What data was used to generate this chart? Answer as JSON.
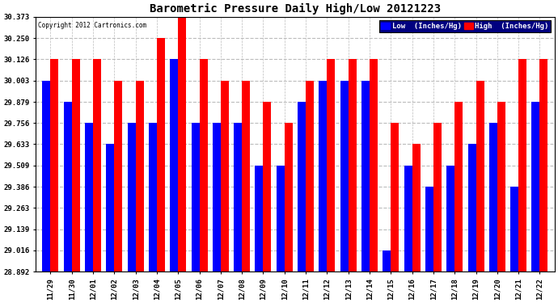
{
  "title": "Barometric Pressure Daily High/Low 20121223",
  "copyright": "Copyright 2012 Cartronics.com",
  "categories": [
    "11/29",
    "11/30",
    "12/01",
    "12/02",
    "12/03",
    "12/04",
    "12/05",
    "12/06",
    "12/07",
    "12/08",
    "12/09",
    "12/10",
    "12/11",
    "12/12",
    "12/13",
    "12/14",
    "12/15",
    "12/16",
    "12/17",
    "12/18",
    "12/19",
    "12/20",
    "12/21",
    "12/22"
  ],
  "low_values": [
    30.003,
    29.879,
    29.756,
    29.633,
    29.756,
    29.756,
    30.126,
    29.756,
    29.756,
    29.756,
    29.509,
    29.509,
    29.879,
    30.003,
    30.003,
    30.003,
    29.016,
    29.509,
    29.386,
    29.509,
    29.633,
    29.756,
    29.386,
    29.879
  ],
  "high_values": [
    30.126,
    30.126,
    30.126,
    30.003,
    30.003,
    30.25,
    30.373,
    30.126,
    30.003,
    30.003,
    29.879,
    29.756,
    30.003,
    30.126,
    30.126,
    30.126,
    29.756,
    29.633,
    29.756,
    29.879,
    30.003,
    29.879,
    30.126,
    30.126
  ],
  "low_color": "#0000ff",
  "high_color": "#ff0000",
  "ymin": 28.892,
  "ymax": 30.373,
  "yticks": [
    28.892,
    29.016,
    29.139,
    29.263,
    29.386,
    29.509,
    29.633,
    29.756,
    29.879,
    30.003,
    30.126,
    30.25,
    30.373
  ],
  "bg_color": "#ffffff",
  "plot_bg_color": "#ffffff",
  "grid_color": "#bbbbbb"
}
